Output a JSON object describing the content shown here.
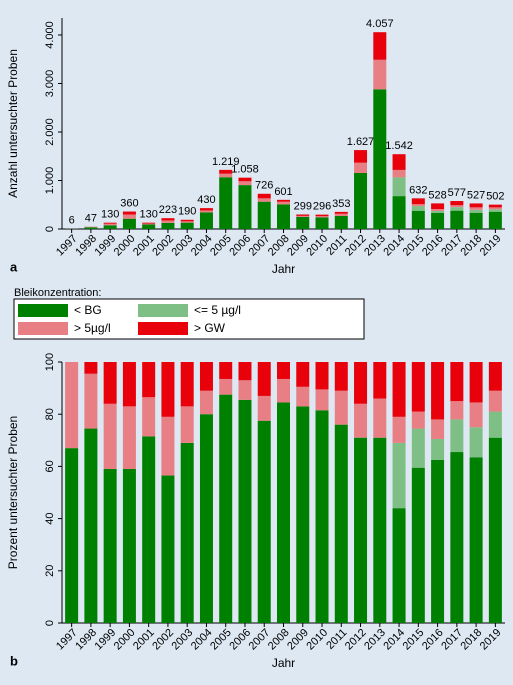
{
  "chart_data": [
    {
      "type": "stacked_bar",
      "panel_label": "a",
      "y_label": "Anzahl untersuchter Proben",
      "x_label": "Jahr",
      "legend_title": "Bleikonzentration:",
      "categories": [
        "1997",
        "1998",
        "1999",
        "2000",
        "2001",
        "2002",
        "2003",
        "2004",
        "2005",
        "2006",
        "2007",
        "2008",
        "2009",
        "2010",
        "2011",
        "2012",
        "2013",
        "2014",
        "2015",
        "2016",
        "2017",
        "2018",
        "2019"
      ],
      "series": [
        {
          "name": "< BG",
          "color": "#008000",
          "values": [
            4,
            35,
            77,
            212,
            93,
            126,
            131,
            344,
            1067,
            905,
            563,
            508,
            248,
            241,
            268,
            1155,
            2880,
            678,
            376,
            330,
            378,
            335,
            356
          ]
        },
        {
          "name": "<= 5 µg/l",
          "color": "#7dbf85",
          "values": [
            0,
            0,
            0,
            0,
            0,
            0,
            0,
            0,
            0,
            0,
            0,
            0,
            0,
            0,
            0,
            0,
            0,
            386,
            95,
            42,
            72,
            61,
            50
          ]
        },
        {
          "name": "> 5µg/l",
          "color": "#e87f85",
          "values": [
            2,
            10,
            32,
            87,
            20,
            50,
            27,
            39,
            73,
            79,
            69,
            54,
            23,
            24,
            46,
            212,
            609,
            154,
            41,
            40,
            40,
            50,
            40
          ]
        },
        {
          "name": "> GW",
          "color": "#e8000b",
          "values": [
            0,
            2,
            21,
            61,
            17,
            47,
            32,
            47,
            79,
            74,
            94,
            39,
            28,
            31,
            39,
            260,
            568,
            324,
            120,
            116,
            87,
            81,
            56
          ]
        }
      ],
      "totals": [
        6,
        47,
        130,
        360,
        130,
        223,
        190,
        430,
        1219,
        1058,
        726,
        601,
        299,
        296,
        353,
        1627,
        4057,
        1542,
        632,
        528,
        577,
        527,
        502
      ],
      "value_labels": [
        "6",
        "47",
        "130",
        "360",
        "130",
        "223",
        "190",
        "430",
        "1.219",
        "1.058",
        "726",
        "601",
        "299",
        "296",
        "353",
        "1.627",
        "4.057",
        "1.542",
        "632",
        "528",
        "577",
        "527",
        "502"
      ],
      "ylim": [
        0,
        4350
      ],
      "yticks": [
        0,
        {
          "value": 1000,
          "label": "1.000"
        },
        {
          "value": 2000,
          "label": "2.000"
        },
        {
          "value": 3000,
          "label": "3.000"
        },
        {
          "value": 4000,
          "label": "4.000"
        }
      ]
    },
    {
      "type": "stacked_bar",
      "panel_label": "b",
      "y_label": "Prozent untersuchter Proben",
      "x_label": "Jahr",
      "categories": [
        "1997",
        "1998",
        "1999",
        "2000",
        "2001",
        "2002",
        "2003",
        "2004",
        "2005",
        "2006",
        "2007",
        "2008",
        "2009",
        "2010",
        "2011",
        "2012",
        "2013",
        "2014",
        "2015",
        "2016",
        "2017",
        "2018",
        "2019"
      ],
      "series": [
        {
          "color": "#008000",
          "values": [
            67,
            74.5,
            59,
            59,
            71.5,
            56.5,
            69,
            80,
            87.5,
            85.5,
            77.5,
            84.5,
            83,
            81.5,
            76,
            71,
            71,
            44,
            59.5,
            62.5,
            65.5,
            63.5,
            71
          ]
        },
        {
          "color": "#7dbf85",
          "values": [
            0,
            0,
            0,
            0,
            0,
            0,
            0,
            0,
            0,
            0,
            0,
            0,
            0,
            0,
            0,
            0,
            0,
            25,
            15,
            8,
            12.5,
            11.5,
            10
          ]
        },
        {
          "color": "#e87f85",
          "values": [
            33,
            21,
            25,
            24,
            15,
            22.5,
            14,
            9,
            6,
            7.5,
            9.5,
            9,
            7.5,
            8,
            13,
            13,
            15,
            10,
            6.5,
            7.5,
            7,
            9.5,
            8
          ]
        },
        {
          "color": "#e8000b",
          "values": [
            0,
            4.5,
            16,
            17,
            13.5,
            21,
            17,
            11,
            6.5,
            7,
            13,
            6.5,
            9.5,
            10.5,
            11,
            16,
            14,
            21,
            19,
            22,
            15,
            15.5,
            11
          ]
        }
      ],
      "ylim": [
        0,
        100
      ],
      "yticks": [
        0,
        20,
        40,
        60,
        80,
        100
      ]
    }
  ]
}
